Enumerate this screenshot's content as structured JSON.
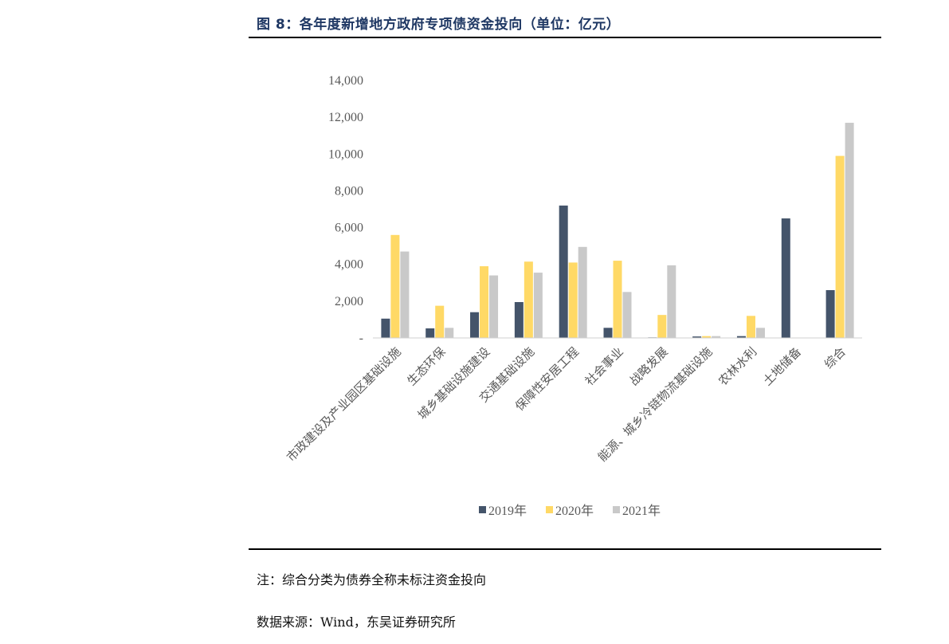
{
  "figure": {
    "title": "图 8：各年度新增地方政府专项债资金投向（单位：亿元）",
    "note": "注：综合分类为债券全称未标注资金投向",
    "source": "数据来源：Wind，东吴证券研究所"
  },
  "chart_data": {
    "type": "bar",
    "title": "",
    "xlabel": "",
    "ylabel": "",
    "ylim": [
      0,
      14000
    ],
    "yticks": [
      {
        "value": 0,
        "label": "-"
      },
      {
        "value": 2000,
        "label": "2,000"
      },
      {
        "value": 4000,
        "label": "4,000"
      },
      {
        "value": 6000,
        "label": "6,000"
      },
      {
        "value": 8000,
        "label": "8,000"
      },
      {
        "value": 10000,
        "label": "10,000"
      },
      {
        "value": 12000,
        "label": "12,000"
      },
      {
        "value": 14000,
        "label": "14,000"
      }
    ],
    "grid": false,
    "legend_position": "bottom",
    "categories": [
      "市政建设及产业园区基础设施",
      "生态环保",
      "城乡基础设施建设",
      "交通基础设施",
      "保障性安居工程",
      "社会事业",
      "战略发展",
      "能源、城乡冷链物流基础设施",
      "农林水利",
      "土地储备",
      "综合"
    ],
    "series": [
      {
        "name": "2019年",
        "color": "#44546a",
        "values": [
          1050,
          520,
          1400,
          1950,
          7200,
          550,
          30,
          80,
          100,
          6500,
          2600
        ]
      },
      {
        "name": "2020年",
        "color": "#ffd966",
        "values": [
          5600,
          1750,
          3900,
          4150,
          4100,
          4200,
          1250,
          100,
          1200,
          0,
          9900
        ]
      },
      {
        "name": "2021年",
        "color": "#c9c9c9",
        "values": [
          4700,
          550,
          3400,
          3550,
          4950,
          2500,
          3950,
          100,
          550,
          0,
          11700
        ]
      }
    ]
  }
}
